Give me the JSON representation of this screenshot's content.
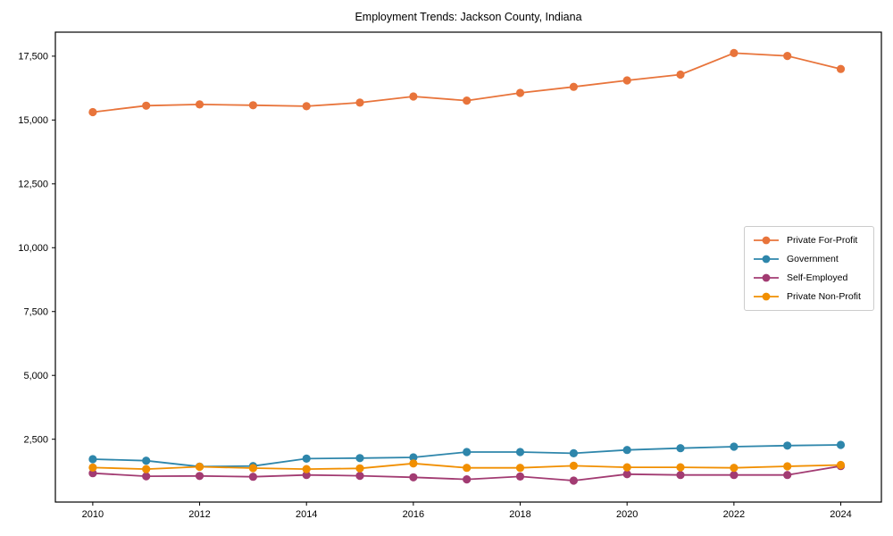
{
  "chart_data": {
    "type": "line",
    "title": "Employment Trends: Jackson County, Indiana",
    "xlabel": "",
    "ylabel": "",
    "x": [
      2010,
      2011,
      2012,
      2013,
      2014,
      2015,
      2016,
      2017,
      2018,
      2019,
      2020,
      2021,
      2022,
      2023,
      2024
    ],
    "series": [
      {
        "name": "Private For-Profit",
        "color": "#E8743B",
        "values": [
          15310,
          15560,
          15610,
          15580,
          15540,
          15680,
          15920,
          15760,
          16060,
          16300,
          16550,
          16780,
          17620,
          17510,
          17000
        ]
      },
      {
        "name": "Government",
        "color": "#2E86AB",
        "values": [
          1720,
          1660,
          1430,
          1450,
          1740,
          1760,
          1790,
          2000,
          2000,
          1950,
          2080,
          2150,
          2210,
          2250,
          2280
        ]
      },
      {
        "name": "Self-Employed",
        "color": "#A23B72",
        "values": [
          1170,
          1050,
          1060,
          1030,
          1100,
          1070,
          1010,
          930,
          1040,
          880,
          1130,
          1100,
          1100,
          1100,
          1450
        ]
      },
      {
        "name": "Private Non-Profit",
        "color": "#F18F01",
        "values": [
          1390,
          1330,
          1420,
          1370,
          1330,
          1360,
          1550,
          1380,
          1380,
          1460,
          1400,
          1400,
          1380,
          1440,
          1490
        ]
      }
    ],
    "xlim": [
      2009.3,
      2024.76
    ],
    "ylim": [
      40,
      18440
    ],
    "xticks": [
      2010,
      2012,
      2014,
      2016,
      2018,
      2020,
      2022,
      2024
    ],
    "x_tick_labels": [
      "2010",
      "2012",
      "2014",
      "2016",
      "2018",
      "2020",
      "2022",
      "2024"
    ],
    "yticks": [
      2500,
      5000,
      7500,
      10000,
      12500,
      15000,
      17500
    ],
    "y_tick_labels": [
      "2,500",
      "5,000",
      "7,500",
      "10,000",
      "12,500",
      "15,000",
      "17,500"
    ],
    "grid": false,
    "legend_position": "center right",
    "marker": "circle"
  },
  "colors": {
    "background": "#ffffff",
    "spine": "#000000",
    "tick_text": "#000000",
    "legend_border": "#cccccc",
    "legend_background": "#ffffff"
  }
}
